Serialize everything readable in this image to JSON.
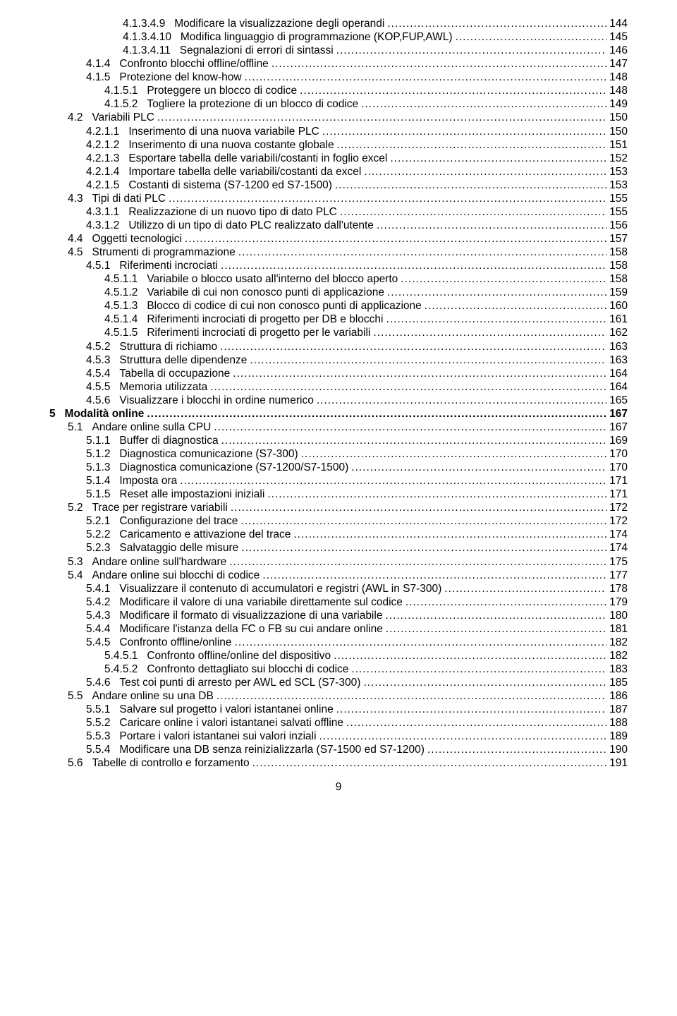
{
  "page_number": "9",
  "entries": [
    {
      "level": 4,
      "num": "4.1.3.4.9",
      "title": "Modificare la visualizzazione degli operandi",
      "page": "144",
      "bold": false
    },
    {
      "level": 4,
      "num": "4.1.3.4.10",
      "title": "Modifica linguaggio di programmazione (KOP,FUP,AWL)",
      "page": "145",
      "bold": false
    },
    {
      "level": 4,
      "num": "4.1.3.4.11",
      "title": "Segnalazioni di errori di sintassi",
      "page": "146",
      "bold": false
    },
    {
      "level": 2,
      "num": "4.1.4",
      "title": "Confronto blocchi offline/offline",
      "page": "147",
      "bold": false
    },
    {
      "level": 2,
      "num": "4.1.5",
      "title": "Protezione del know-how",
      "page": "148",
      "bold": false
    },
    {
      "level": 3,
      "num": "4.1.5.1",
      "title": "Proteggere un blocco di codice",
      "page": "148",
      "bold": false
    },
    {
      "level": 3,
      "num": "4.1.5.2",
      "title": "Togliere la protezione di un blocco di codice",
      "page": "149",
      "bold": false
    },
    {
      "level": 1,
      "num": "4.2",
      "title": "Variabili PLC",
      "page": "150",
      "bold": false
    },
    {
      "level": 2,
      "num": "4.2.1.1",
      "title": "Inserimento di una nuova variabile PLC",
      "page": "150",
      "bold": false
    },
    {
      "level": 2,
      "num": "4.2.1.2",
      "title": "Inserimento di una nuova costante globale",
      "page": "151",
      "bold": false
    },
    {
      "level": 2,
      "num": "4.2.1.3",
      "title": "Esportare tabella delle variabili/costanti in foglio excel",
      "page": "152",
      "bold": false
    },
    {
      "level": 2,
      "num": "4.2.1.4",
      "title": "Importare tabella delle variabili/costanti da excel",
      "page": "153",
      "bold": false
    },
    {
      "level": 2,
      "num": "4.2.1.5",
      "title": "Costanti di sistema (S7-1200 ed S7-1500)",
      "page": "153",
      "bold": false
    },
    {
      "level": 1,
      "num": "4.3",
      "title": "Tipi di dati PLC",
      "page": "155",
      "bold": false
    },
    {
      "level": 2,
      "num": "4.3.1.1",
      "title": "Realizzazione di un nuovo tipo di dato PLC",
      "page": "155",
      "bold": false
    },
    {
      "level": 2,
      "num": "4.3.1.2",
      "title": "Utilizzo di un tipo di dato PLC realizzato dall'utente",
      "page": "156",
      "bold": false
    },
    {
      "level": 1,
      "num": "4.4",
      "title": "Oggetti tecnologici",
      "page": "157",
      "bold": false
    },
    {
      "level": 1,
      "num": "4.5",
      "title": "Strumenti di programmazione",
      "page": "158",
      "bold": false
    },
    {
      "level": 2,
      "num": "4.5.1",
      "title": "Riferimenti incrociati",
      "page": "158",
      "bold": false
    },
    {
      "level": 3,
      "num": "4.5.1.1",
      "title": "Variabile o blocco usato all'interno del blocco aperto",
      "page": "158",
      "bold": false
    },
    {
      "level": 3,
      "num": "4.5.1.2",
      "title": "Variabile di cui non conosco punti di applicazione",
      "page": "159",
      "bold": false
    },
    {
      "level": 3,
      "num": "4.5.1.3",
      "title": "Blocco di codice di cui non conosco punti di applicazione",
      "page": "160",
      "bold": false
    },
    {
      "level": 3,
      "num": "4.5.1.4",
      "title": "Riferimenti incrociati di progetto per DB e blocchi",
      "page": "161",
      "bold": false
    },
    {
      "level": 3,
      "num": "4.5.1.5",
      "title": "Riferimenti incrociati di progetto per le variabili",
      "page": "162",
      "bold": false
    },
    {
      "level": 2,
      "num": "4.5.2",
      "title": "Struttura di richiamo",
      "page": "163",
      "bold": false
    },
    {
      "level": 2,
      "num": "4.5.3",
      "title": "Struttura delle dipendenze",
      "page": "163",
      "bold": false
    },
    {
      "level": 2,
      "num": "4.5.4",
      "title": "Tabella di occupazione",
      "page": "164",
      "bold": false
    },
    {
      "level": 2,
      "num": "4.5.5",
      "title": "Memoria utilizzata",
      "page": "164",
      "bold": false
    },
    {
      "level": 2,
      "num": "4.5.6",
      "title": "Visualizzare i blocchi in ordine numerico",
      "page": "165",
      "bold": false
    },
    {
      "level": 0,
      "num": "5",
      "title": "Modalità online",
      "page": "167",
      "bold": true
    },
    {
      "level": 1,
      "num": "5.1",
      "title": "Andare online sulla CPU",
      "page": "167",
      "bold": false
    },
    {
      "level": 2,
      "num": "5.1.1",
      "title": "Buffer di diagnostica",
      "page": "169",
      "bold": false
    },
    {
      "level": 2,
      "num": "5.1.2",
      "title": "Diagnostica comunicazione (S7-300)",
      "page": "170",
      "bold": false
    },
    {
      "level": 2,
      "num": "5.1.3",
      "title": "Diagnostica comunicazione (S7-1200/S7-1500)",
      "page": "170",
      "bold": false
    },
    {
      "level": 2,
      "num": "5.1.4",
      "title": "Imposta ora",
      "page": "171",
      "bold": false
    },
    {
      "level": 2,
      "num": "5.1.5",
      "title": "Reset alle impostazioni iniziali",
      "page": "171",
      "bold": false
    },
    {
      "level": 1,
      "num": "5.2",
      "title": "Trace per registrare variabili",
      "page": "172",
      "bold": false
    },
    {
      "level": 2,
      "num": "5.2.1",
      "title": "Configurazione del trace",
      "page": "172",
      "bold": false
    },
    {
      "level": 2,
      "num": "5.2.2",
      "title": "Caricamento e attivazione del trace",
      "page": "174",
      "bold": false
    },
    {
      "level": 2,
      "num": "5.2.3",
      "title": "Salvataggio delle misure",
      "page": "174",
      "bold": false
    },
    {
      "level": 1,
      "num": "5.3",
      "title": "Andare online sull'hardware",
      "page": "175",
      "bold": false
    },
    {
      "level": 1,
      "num": "5.4",
      "title": "Andare online sui blocchi di codice",
      "page": "177",
      "bold": false
    },
    {
      "level": 2,
      "num": "5.4.1",
      "title": "Visualizzare il contenuto di accumulatori e registri (AWL in S7-300)",
      "page": "178",
      "bold": false
    },
    {
      "level": 2,
      "num": "5.4.2",
      "title": "Modificare il valore di una variabile direttamente sul codice",
      "page": "179",
      "bold": false
    },
    {
      "level": 2,
      "num": "5.4.3",
      "title": "Modificare il formato di visualizzazione di una variabile",
      "page": "180",
      "bold": false
    },
    {
      "level": 2,
      "num": "5.4.4",
      "title": "Modificare l'istanza della FC o FB su cui andare online",
      "page": "181",
      "bold": false
    },
    {
      "level": 2,
      "num": "5.4.5",
      "title": "Confronto offline/online",
      "page": "182",
      "bold": false
    },
    {
      "level": 3,
      "num": "5.4.5.1",
      "title": "Confronto offline/online del dispositivo",
      "page": "182",
      "bold": false
    },
    {
      "level": 3,
      "num": "5.4.5.2",
      "title": "Confronto dettagliato sui blocchi di codice",
      "page": "183",
      "bold": false
    },
    {
      "level": 2,
      "num": "5.4.6",
      "title": "Test coi punti di arresto per AWL ed SCL (S7-300)",
      "page": "185",
      "bold": false
    },
    {
      "level": 1,
      "num": "5.5",
      "title": "Andare online su una DB",
      "page": "186",
      "bold": false
    },
    {
      "level": 2,
      "num": "5.5.1",
      "title": "Salvare sul progetto i valori istantanei online",
      "page": "187",
      "bold": false
    },
    {
      "level": 2,
      "num": "5.5.2",
      "title": "Caricare online i valori istantanei salvati offline",
      "page": "188",
      "bold": false
    },
    {
      "level": 2,
      "num": "5.5.3",
      "title": "Portare i valori istantanei sui valori inziali",
      "page": "189",
      "bold": false
    },
    {
      "level": 2,
      "num": "5.5.4",
      "title": "Modificare una DB senza reinizializzarla (S7-1500 ed S7-1200)",
      "page": "190",
      "bold": false
    },
    {
      "level": 1,
      "num": "5.6",
      "title": "Tabelle di controllo e forzamento",
      "page": "191",
      "bold": false
    }
  ]
}
